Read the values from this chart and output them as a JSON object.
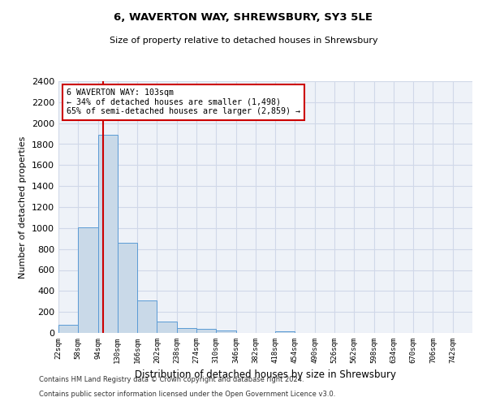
{
  "title1": "6, WAVERTON WAY, SHREWSBURY, SY3 5LE",
  "title2": "Size of property relative to detached houses in Shrewsbury",
  "xlabel": "Distribution of detached houses by size in Shrewsbury",
  "ylabel": "Number of detached properties",
  "bin_edges": [
    22,
    58,
    94,
    130,
    166,
    202,
    238,
    274,
    310,
    346,
    382,
    418,
    454,
    490,
    526,
    562,
    598,
    634,
    670,
    706,
    742
  ],
  "bar_heights": [
    80,
    1010,
    1890,
    860,
    310,
    110,
    50,
    35,
    20,
    0,
    0,
    15,
    0,
    0,
    0,
    0,
    0,
    0,
    0,
    0
  ],
  "bar_color": "#c9d9e8",
  "bar_edgecolor": "#5b9bd5",
  "grid_color": "#d0d8e8",
  "background_color": "#eef2f8",
  "property_size": 103,
  "property_label": "6 WAVERTON WAY: 103sqm",
  "annotation_line1": "← 34% of detached houses are smaller (1,498)",
  "annotation_line2": "65% of semi-detached houses are larger (2,859) →",
  "annotation_box_color": "#ffffff",
  "annotation_border_color": "#cc0000",
  "vertical_line_color": "#cc0000",
  "ylim": [
    0,
    2400
  ],
  "yticks": [
    0,
    200,
    400,
    600,
    800,
    1000,
    1200,
    1400,
    1600,
    1800,
    2000,
    2200,
    2400
  ],
  "footer1": "Contains HM Land Registry data © Crown copyright and database right 2024.",
  "footer2": "Contains public sector information licensed under the Open Government Licence v3.0."
}
